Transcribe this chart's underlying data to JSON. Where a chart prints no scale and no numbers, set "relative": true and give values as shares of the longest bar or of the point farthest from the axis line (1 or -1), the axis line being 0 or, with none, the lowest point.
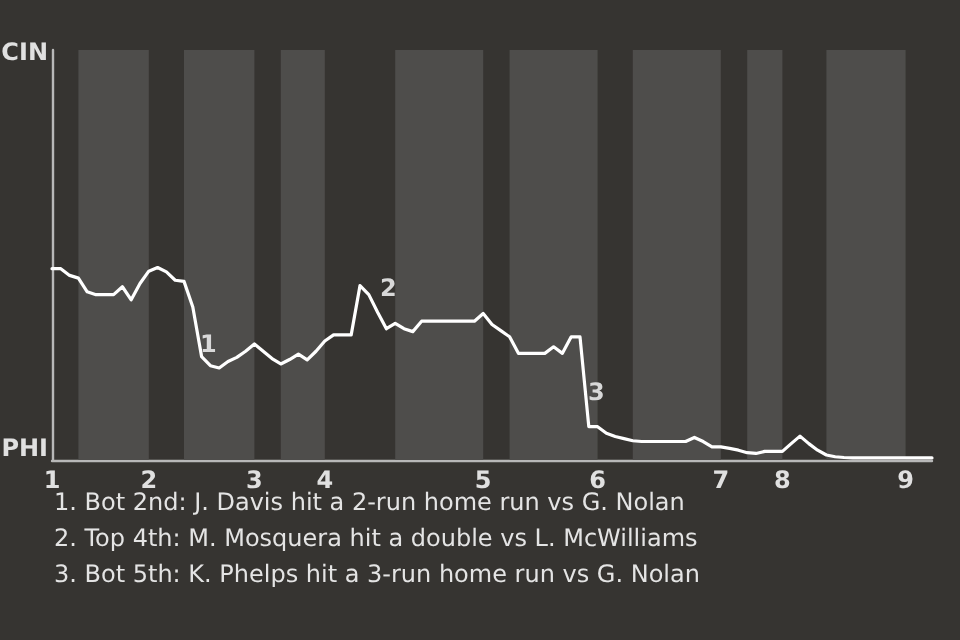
{
  "chart_data": {
    "type": "line",
    "relative": true,
    "categories": [
      "1",
      null,
      null,
      null,
      null,
      null,
      null,
      null,
      null,
      null,
      null,
      "2",
      null,
      null,
      null,
      null,
      null,
      null,
      null,
      null,
      null,
      null,
      null,
      "3",
      null,
      null,
      null,
      null,
      null,
      null,
      null,
      "4",
      null,
      null,
      null,
      null,
      null,
      null,
      null,
      null,
      null,
      null,
      null,
      null,
      null,
      null,
      null,
      null,
      null,
      "5",
      null,
      null,
      null,
      null,
      null,
      null,
      null,
      null,
      null,
      null,
      null,
      null,
      "6",
      null,
      null,
      null,
      null,
      null,
      null,
      null,
      null,
      null,
      null,
      null,
      null,
      null,
      "7",
      null,
      null,
      null,
      null,
      null,
      null,
      "8",
      null,
      null,
      null,
      null,
      null,
      null,
      null,
      null,
      null,
      null,
      null,
      null,
      null,
      "9",
      null,
      null,
      null
    ],
    "marker": "none",
    "line_style": "solid",
    "series": [
      {
        "color": "#ffffff",
        "values": [
          0.994,
          0.994,
          0.959,
          0.945,
          0.874,
          0.859,
          0.859,
          0.859,
          0.9,
          0.832,
          0.917,
          0.981,
          1,
          0.977,
          0.934,
          0.928,
          0.795,
          0.537,
          0.49,
          0.478,
          0.512,
          0.533,
          0.565,
          0.603,
          0.565,
          0.527,
          0.499,
          0.522,
          0.55,
          0.52,
          0.565,
          0.618,
          0.65,
          0.65,
          0.65,
          0.906,
          0.859,
          0.768,
          0.682,
          0.71,
          0.682,
          0.667,
          0.721,
          0.721,
          0.721,
          0.721,
          0.721,
          0.721,
          0.721,
          0.761,
          0.704,
          0.672,
          0.64,
          0.554,
          0.554,
          0.554,
          0.554,
          0.588,
          0.554,
          0.64,
          0.64,
          0.173,
          0.173,
          0.139,
          0.122,
          0.111,
          0.1,
          0.096,
          0.096,
          0.096,
          0.096,
          0.096,
          0.096,
          0.117,
          0.096,
          0.068,
          0.068,
          0.06,
          0.051,
          0.038,
          0.034,
          0.045,
          0.045,
          0.045,
          0.085,
          0.124,
          0.085,
          0.051,
          0.026,
          0.017,
          0.013,
          0.011,
          0.011,
          0.011,
          0.011,
          0.011,
          0.011,
          0.011,
          0.011,
          0.011,
          0.011
        ]
      }
    ],
    "annotations": [
      "CIN",
      "PHI",
      "1",
      "2",
      "3",
      "1. Bot 2nd: J. Davis hit a 2-run home run vs G. Nolan",
      "2. Top 4th: M. Mosquera hit a double vs L. McWilliams",
      "3. Bot 5th: K. Phelps hit a 3-run home run vs G. Nolan"
    ]
  }
}
